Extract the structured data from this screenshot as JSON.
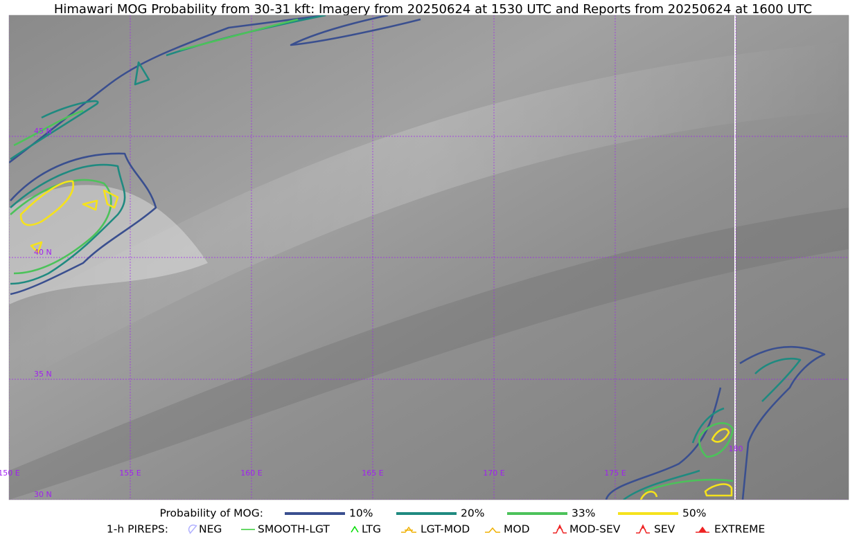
{
  "title": "Himawari MOG Probability from 30-31 kft: Imagery from 20250624 at 1530 UTC and Reports from 20250624 at 1600 UTC",
  "map": {
    "lat_labels": [
      "45 N",
      "40 N",
      "35 N",
      "30 N"
    ],
    "lon_labels": [
      "150 E",
      "155 E",
      "160 E",
      "165 E",
      "170 E",
      "175 E",
      "180"
    ]
  },
  "legend": {
    "probability_title": "Probability of MOG:",
    "probability_levels": [
      {
        "label": "10%",
        "color": "#3a4f8f"
      },
      {
        "label": "20%",
        "color": "#1f8a80"
      },
      {
        "label": "33%",
        "color": "#4cc25a"
      },
      {
        "label": "50%",
        "color": "#f5e21d"
      }
    ],
    "pireps_title": "1-h PIREPS:",
    "pireps": [
      {
        "label": "NEG",
        "color": "#b0b0ff"
      },
      {
        "label": "SMOOTH-LGT",
        "color": "#33cc33"
      },
      {
        "label": "LTG",
        "color": "#00dd00"
      },
      {
        "label": "LGT-MOD",
        "color": "#f0b000"
      },
      {
        "label": "MOD",
        "color": "#f0b000"
      },
      {
        "label": "MOD-SEV",
        "color": "#ee2222"
      },
      {
        "label": "SEV",
        "color": "#ee2222"
      },
      {
        "label": "EXTREME",
        "color": "#ee2222"
      }
    ]
  }
}
